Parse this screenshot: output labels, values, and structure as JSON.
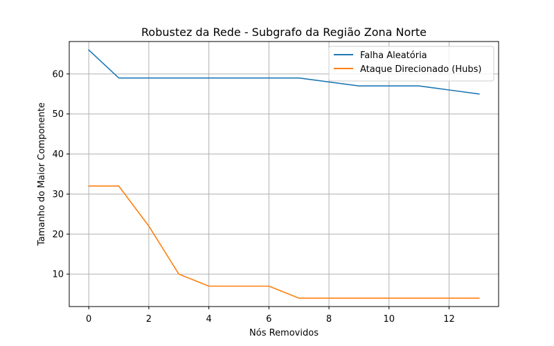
{
  "chart_data": {
    "type": "line",
    "title": "Robustez da Rede - Subgrafo da Região Zona Norte",
    "xlabel": "Nós Removidos",
    "ylabel": "Tamanho do Maior Componente",
    "xlim": [
      -0.65,
      13.65
    ],
    "ylim": [
      1.9,
      68.1
    ],
    "xticks": [
      0,
      2,
      4,
      6,
      8,
      10,
      12
    ],
    "yticks": [
      10,
      20,
      30,
      40,
      50,
      60
    ],
    "grid": true,
    "legend_position": "top-right",
    "x": [
      0,
      1,
      2,
      3,
      4,
      5,
      6,
      7,
      8,
      9,
      10,
      11,
      12,
      13
    ],
    "series": [
      {
        "name": "Falha Aleatória",
        "color": "#1f77b4",
        "values": [
          66,
          59,
          59,
          59,
          59,
          59,
          59,
          59,
          58,
          57,
          57,
          57,
          56,
          55
        ]
      },
      {
        "name": "Ataque Direcionado (Hubs)",
        "color": "#ff7f0e",
        "values": [
          32,
          32,
          22,
          10,
          7,
          7,
          7,
          4,
          4,
          4,
          4,
          4,
          4,
          4
        ]
      }
    ]
  }
}
